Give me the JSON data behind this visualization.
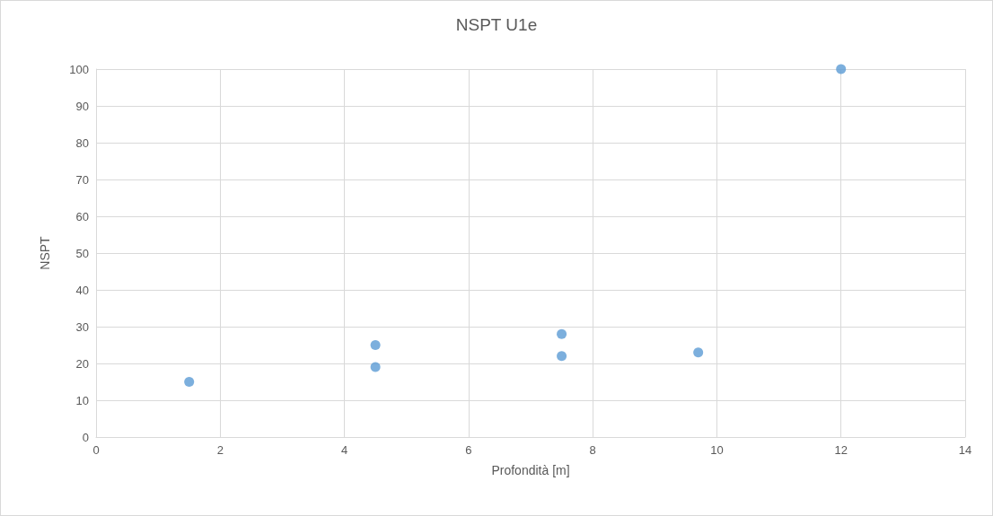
{
  "chart_data": {
    "type": "scatter",
    "title": "NSPT U1e",
    "xlabel": "Profondità [m]",
    "ylabel": "NSPT",
    "x": [
      1.5,
      4.5,
      4.5,
      7.5,
      7.5,
      9.7,
      12
    ],
    "values": [
      15,
      25,
      19,
      28,
      22,
      23,
      100
    ],
    "color": "#5b9bd5",
    "xlim": [
      0,
      14
    ],
    "xticks": [
      0,
      2,
      4,
      6,
      8,
      10,
      12,
      14
    ],
    "ylim": [
      0,
      100
    ],
    "yticks": [
      0,
      10,
      20,
      30,
      40,
      50,
      60,
      70,
      80,
      90,
      100
    ],
    "grid": true,
    "marker": "circle"
  }
}
